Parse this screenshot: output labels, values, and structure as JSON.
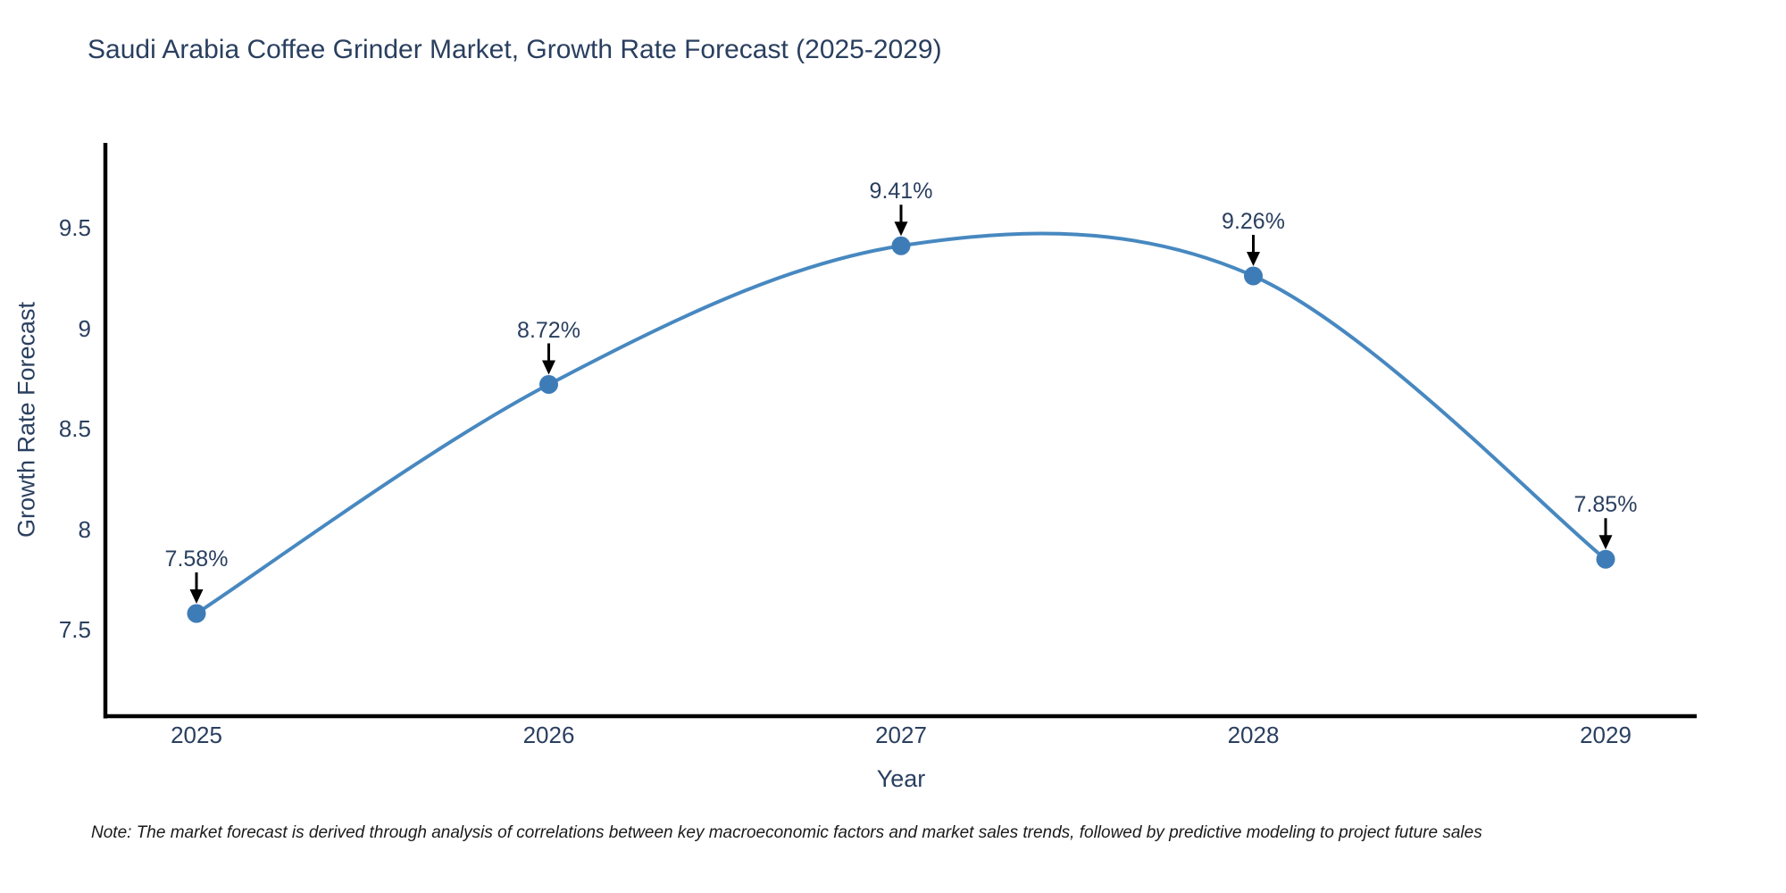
{
  "title": "Saudi Arabia Coffee Grinder Market, Growth Rate Forecast (2025-2029)",
  "note": "Note: The market forecast is derived through analysis of correlations between key macroeconomic factors and market sales trends, followed by predictive modeling to project future sales",
  "chart_data": {
    "type": "line",
    "title": "Saudi Arabia Coffee Grinder Market, Growth Rate Forecast (2025-2029)",
    "xlabel": "Year",
    "ylabel": "Growth Rate Forecast",
    "x": [
      2025,
      2026,
      2027,
      2028,
      2029
    ],
    "categories": [
      "2025",
      "2026",
      "2027",
      "2028",
      "2029"
    ],
    "values": [
      7.58,
      8.72,
      9.41,
      9.26,
      7.85
    ],
    "annotations": [
      "7.58%",
      "8.72%",
      "9.41%",
      "9.26%",
      "7.85%"
    ],
    "y_ticks": [
      9.5,
      9,
      8.5,
      8,
      7.5
    ],
    "y_tick_labels": [
      "9.5",
      "9",
      "8.5",
      "8",
      "7.5"
    ],
    "ylim": [
      7.07,
      9.93
    ],
    "line_shape": "spline",
    "grid": false,
    "legend": "none",
    "markers": true,
    "colors": {
      "line": "#4788c0",
      "marker": "#3e7cb7",
      "axis": "#000000",
      "text": "#2a3f5f",
      "arrow": "#000000",
      "note_text": "#1a1a1a",
      "background": "#ffffff"
    }
  }
}
